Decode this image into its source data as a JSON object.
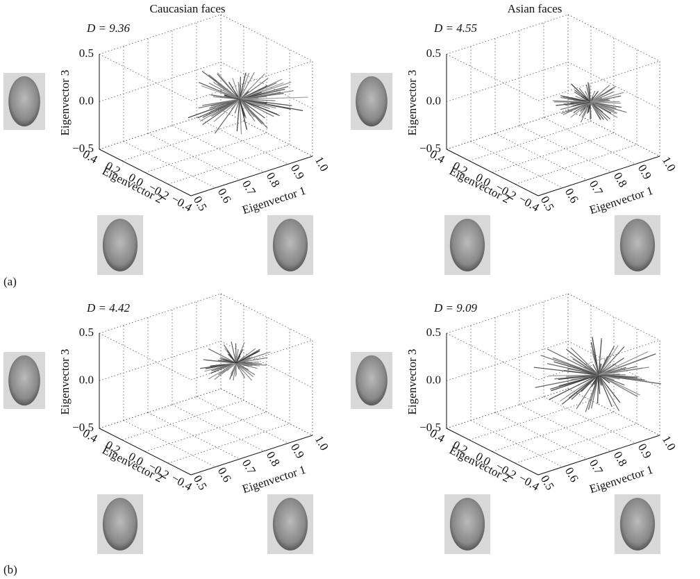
{
  "figure": {
    "row_labels": [
      "(a)",
      "(b)"
    ],
    "panels": [
      {
        "title": "Caucasian faces",
        "d_label": "D = 9.36",
        "z_axis_label": "Eigenvector 3",
        "z_ticks": [
          "−0.5",
          "0.0",
          "0.5"
        ],
        "y_axis_label": "Eigenvector 2",
        "y_ticks": [
          "0.4",
          "0.2",
          "0.0",
          "−0.2",
          "−0.4"
        ],
        "x_axis_label": "Eigenvector 1",
        "x_ticks": [
          "0.5",
          "0.6",
          "0.7",
          "0.8",
          "0.9",
          "1.0"
        ]
      },
      {
        "title": "Asian faces",
        "d_label": "D = 4.55",
        "z_axis_label": "Eigenvector 3",
        "z_ticks": [
          "−0.5",
          "0.0",
          "0.5"
        ],
        "y_axis_label": "Eigenvector 2",
        "y_ticks": [
          "0.4",
          "0.2",
          "0.0",
          "−0.2",
          "−0.4"
        ],
        "x_axis_label": "Eigenvector 1",
        "x_ticks": [
          "0.5",
          "0.6",
          "0.7",
          "0.8",
          "0.9",
          "1.0"
        ]
      },
      {
        "d_label": "D = 4.42",
        "z_axis_label": "Eigenvector 3",
        "z_ticks": [
          "−0.5",
          "0.0",
          "0.5"
        ],
        "y_axis_label": "Eigenvector 2",
        "y_ticks": [
          "0.4",
          "0.2",
          "0.0",
          "−0.2",
          "−0.4"
        ],
        "x_axis_label": "Eigenvector 1",
        "x_ticks": [
          "0.5",
          "0.6",
          "0.7",
          "0.8",
          "0.9",
          "1.0"
        ]
      },
      {
        "d_label": "D = 9.09",
        "z_axis_label": "Eigenvector 3",
        "z_ticks": [
          "−0.5",
          "0.0",
          "0.5"
        ],
        "y_axis_label": "Eigenvector 2",
        "y_ticks": [
          "0.4",
          "0.2",
          "0.0",
          "−0.2",
          "−0.4"
        ],
        "x_axis_label": "Eigenvector 1",
        "x_ticks": [
          "0.5",
          "0.6",
          "0.7",
          "0.8",
          "0.9",
          "1.0"
        ]
      }
    ]
  }
}
